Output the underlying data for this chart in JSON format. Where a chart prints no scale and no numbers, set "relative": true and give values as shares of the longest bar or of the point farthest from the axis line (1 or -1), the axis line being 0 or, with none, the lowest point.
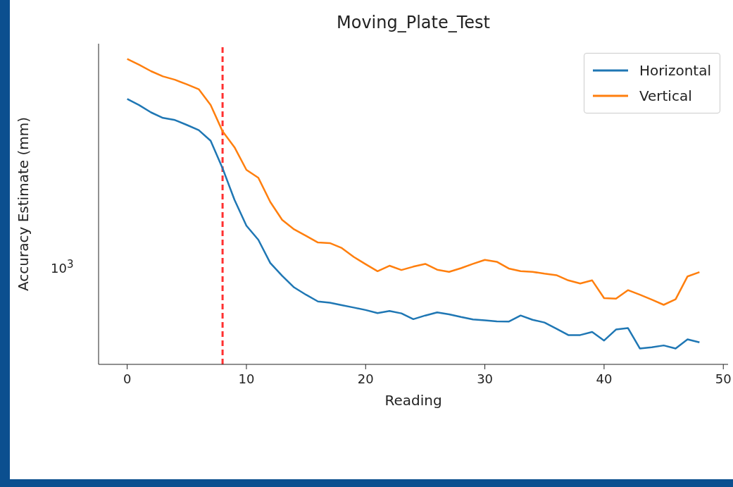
{
  "chart_data": {
    "type": "line",
    "title": "Moving_Plate_Test",
    "xlabel": "Reading",
    "ylabel": "Accuracy Estimate (mm)",
    "relative": true,
    "x": [
      0,
      1,
      2,
      3,
      4,
      5,
      6,
      7,
      8,
      9,
      10,
      11,
      12,
      13,
      14,
      15,
      16,
      17,
      18,
      19,
      20,
      21,
      22,
      23,
      24,
      25,
      26,
      27,
      28,
      29,
      30,
      31,
      32,
      33,
      34,
      35,
      36,
      37,
      38,
      39,
      40,
      41,
      42,
      43,
      44,
      45,
      46,
      47,
      48
    ],
    "series": [
      {
        "name": "Horizontal",
        "color": "#1f77b4",
        "values": [
          0.869,
          0.849,
          0.825,
          0.807,
          0.8,
          0.784,
          0.767,
          0.732,
          0.642,
          0.539,
          0.454,
          0.408,
          0.332,
          0.29,
          0.252,
          0.228,
          0.206,
          0.202,
          0.194,
          0.186,
          0.178,
          0.168,
          0.175,
          0.167,
          0.148,
          0.16,
          0.17,
          0.164,
          0.155,
          0.147,
          0.144,
          0.141,
          0.14,
          0.16,
          0.146,
          0.137,
          0.117,
          0.096,
          0.096,
          0.106,
          0.078,
          0.114,
          0.119,
          0.052,
          0.056,
          0.062,
          0.052,
          0.082,
          0.072
        ]
      },
      {
        "name": "Vertical",
        "color": "#ff7f0e",
        "values": [
          1,
          0.981,
          0.96,
          0.943,
          0.932,
          0.917,
          0.901,
          0.849,
          0.763,
          0.711,
          0.637,
          0.611,
          0.532,
          0.473,
          0.442,
          0.421,
          0.399,
          0.397,
          0.381,
          0.352,
          0.328,
          0.305,
          0.323,
          0.309,
          0.32,
          0.329,
          0.31,
          0.303,
          0.315,
          0.329,
          0.342,
          0.336,
          0.314,
          0.305,
          0.303,
          0.297,
          0.292,
          0.275,
          0.265,
          0.275,
          0.217,
          0.215,
          0.243,
          0.228,
          0.212,
          0.195,
          0.213,
          0.288,
          0.302
        ]
      }
    ],
    "xlim": [
      -2.4,
      50.4
    ],
    "xticks": [
      0,
      10,
      20,
      30,
      40,
      50
    ],
    "annotations": [
      "10$^{3}$"
    ],
    "ref_lines": [
      {
        "axis": "x",
        "value": 8,
        "label": null,
        "color": "#ff3030",
        "line_style": "dashed"
      }
    ],
    "legend": "top right",
    "marker": "none",
    "line_style": "solid"
  }
}
